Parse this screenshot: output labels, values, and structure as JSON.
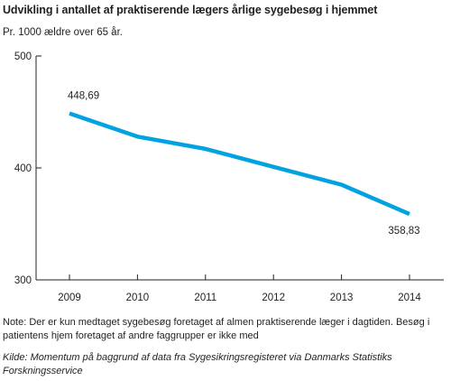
{
  "header": {
    "title": "Udvikling i antallet af praktiserende lægers årlige sygebesøg i hjemmet",
    "subtitle": "Pr. 1000 ældre over 65 år."
  },
  "chart_data": {
    "type": "line",
    "title": "Udvikling i antallet af praktiserende lægers årlige sygebesøg i hjemmet",
    "subtitle": "Pr. 1000 ældre over 65 år.",
    "xlabel": "",
    "ylabel": "",
    "categories": [
      "2009",
      "2010",
      "2011",
      "2012",
      "2013",
      "2014"
    ],
    "series": [
      {
        "values": [
          448.69,
          428,
          417,
          401,
          385,
          358.83
        ],
        "color": "#00a3e0"
      }
    ],
    "ylim": [
      300,
      500
    ],
    "yticks": [
      "300",
      "400",
      "500"
    ],
    "data_labels": [
      {
        "index": 0,
        "text": "448,69"
      },
      {
        "index": 5,
        "text": "358,83"
      }
    ],
    "grid": false,
    "legend": "none"
  },
  "footer": {
    "note": "Note: Der er kun medtaget sygebesøg foretaget af almen praktiserende læger i dagtiden. Besøg i patientens hjem foretaget af andre faggrupper er ikke med",
    "source": "Kilde: Momentum på baggrund af data fra Sygesikringsregisteret via Danmarks Statistiks Forskningsservice"
  }
}
